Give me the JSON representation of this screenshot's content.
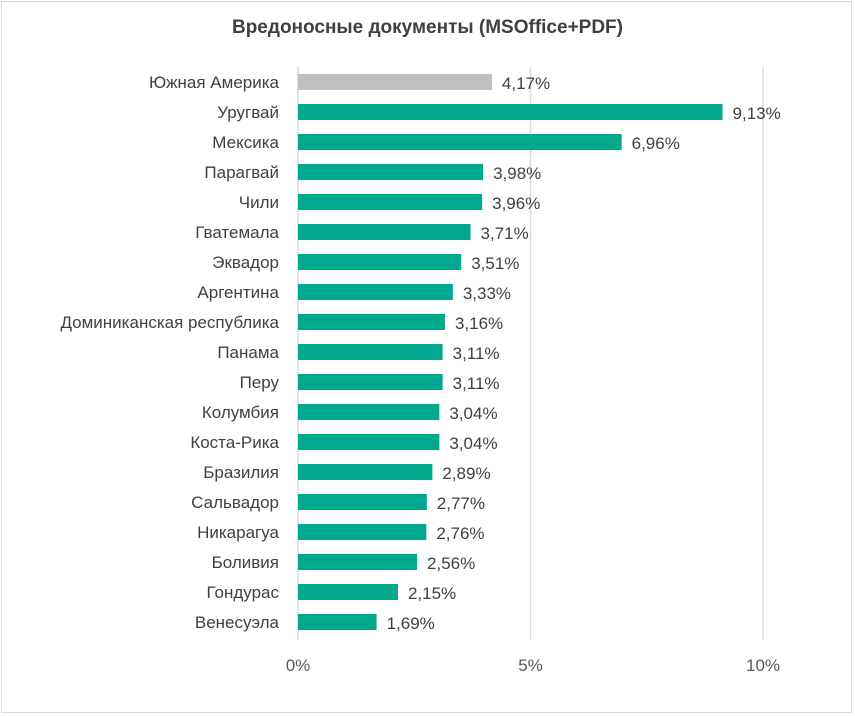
{
  "chart_data": {
    "type": "bar",
    "orientation": "horizontal",
    "title": "Вредоносные документы (MSOffice+PDF)",
    "xlabel": "",
    "ylabel": "",
    "xlim": [
      0,
      10
    ],
    "xticks": [
      "0%",
      "5%",
      "10%"
    ],
    "grid": true,
    "categories": [
      "Южная Америка",
      "Уругвай",
      "Мексика",
      "Парагвай",
      "Чили",
      "Гватемала",
      "Эквадор",
      "Аргентина",
      "Доминиканская республика",
      "Панама",
      "Перу",
      "Колумбия",
      "Коста-Рика",
      "Бразилия",
      "Сальвадор",
      "Никарагуа",
      "Боливия",
      "Гондурас",
      "Венесуэла"
    ],
    "values": [
      4.17,
      9.13,
      6.96,
      3.98,
      3.96,
      3.71,
      3.51,
      3.33,
      3.16,
      3.11,
      3.11,
      3.04,
      3.04,
      2.89,
      2.77,
      2.76,
      2.56,
      2.15,
      1.69
    ],
    "labels": [
      "4,17%",
      "9,13%",
      "6,96%",
      "3,98%",
      "3,96%",
      "3,71%",
      "3,51%",
      "3,33%",
      "3,16%",
      "3,11%",
      "3,11%",
      "3,04%",
      "3,04%",
      "2,89%",
      "2,77%",
      "2,76%",
      "2,56%",
      "2,15%",
      "1,69%"
    ],
    "colors": {
      "highlight": "#BFBFBF",
      "bar": "#00A88E",
      "grid": "#D9D9D9",
      "text": "#404040"
    }
  }
}
